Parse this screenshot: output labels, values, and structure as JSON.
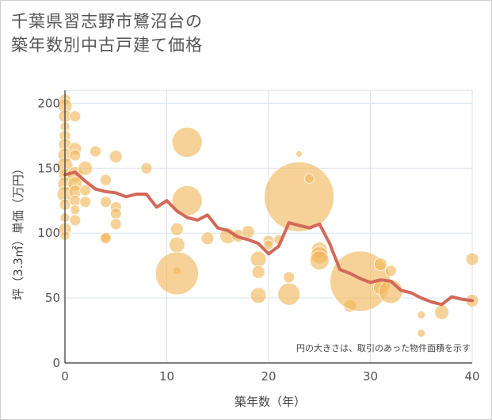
{
  "title": {
    "line1": "千葉県習志野市鷺沼台の",
    "line2": "築年数別中古戸建て価格"
  },
  "note": "円の大きさは、取引のあった物件面積を示す",
  "colors": {
    "bubble": "#f0b659",
    "line": "#d2695a",
    "grid": "#d8e2ea",
    "axis": "#333333"
  },
  "chart_data": {
    "type": "scatter",
    "xlabel": "築年数（年）",
    "ylabel": "坪（3.3㎡）単価（万円）",
    "xlim": [
      0,
      40
    ],
    "ylim": [
      0,
      210
    ],
    "xticks": [
      "0",
      "10",
      "20",
      "30",
      "40"
    ],
    "yticks": [
      "0",
      "50",
      "100",
      "150",
      "200"
    ],
    "grid": true,
    "bubbles": [
      {
        "x": 0,
        "y": 203,
        "r": 7
      },
      {
        "x": 0,
        "y": 198,
        "r": 9
      },
      {
        "x": 0,
        "y": 190,
        "r": 8
      },
      {
        "x": 0,
        "y": 182,
        "r": 6
      },
      {
        "x": 0,
        "y": 175,
        "r": 7
      },
      {
        "x": 0,
        "y": 168,
        "r": 8
      },
      {
        "x": 0,
        "y": 160,
        "r": 9
      },
      {
        "x": 0,
        "y": 152,
        "r": 10
      },
      {
        "x": 0,
        "y": 145,
        "r": 8
      },
      {
        "x": 0,
        "y": 138,
        "r": 9
      },
      {
        "x": 0,
        "y": 130,
        "r": 10
      },
      {
        "x": 0,
        "y": 122,
        "r": 7
      },
      {
        "x": 0,
        "y": 112,
        "r": 6
      },
      {
        "x": 0,
        "y": 103,
        "r": 8
      },
      {
        "x": 0,
        "y": 98,
        "r": 6
      },
      {
        "x": 1,
        "y": 190,
        "r": 7
      },
      {
        "x": 1,
        "y": 165,
        "r": 8
      },
      {
        "x": 1,
        "y": 160,
        "r": 7
      },
      {
        "x": 1,
        "y": 145,
        "r": 10
      },
      {
        "x": 1,
        "y": 138,
        "r": 9
      },
      {
        "x": 1,
        "y": 132,
        "r": 8
      },
      {
        "x": 1,
        "y": 125,
        "r": 7
      },
      {
        "x": 1,
        "y": 118,
        "r": 6
      },
      {
        "x": 1,
        "y": 110,
        "r": 7
      },
      {
        "x": 2,
        "y": 150,
        "r": 9
      },
      {
        "x": 2,
        "y": 133,
        "r": 7
      },
      {
        "x": 2,
        "y": 124,
        "r": 7
      },
      {
        "x": 3,
        "y": 163,
        "r": 7
      },
      {
        "x": 4,
        "y": 141,
        "r": 7
      },
      {
        "x": 4,
        "y": 124,
        "r": 7
      },
      {
        "x": 4,
        "y": 97,
        "r": 6
      },
      {
        "x": 4,
        "y": 96,
        "r": 7
      },
      {
        "x": 5,
        "y": 159,
        "r": 8
      },
      {
        "x": 5,
        "y": 120,
        "r": 7
      },
      {
        "x": 5,
        "y": 115,
        "r": 7
      },
      {
        "x": 5,
        "y": 107,
        "r": 7
      },
      {
        "x": 8,
        "y": 150,
        "r": 7
      },
      {
        "x": 11,
        "y": 103,
        "r": 8
      },
      {
        "x": 11,
        "y": 91,
        "r": 10
      },
      {
        "x": 11,
        "y": 71,
        "r": 5
      },
      {
        "x": 11,
        "y": 69,
        "r": 27
      },
      {
        "x": 12,
        "y": 170,
        "r": 19
      },
      {
        "x": 12,
        "y": 125,
        "r": 19
      },
      {
        "x": 14,
        "y": 96,
        "r": 8
      },
      {
        "x": 16,
        "y": 98,
        "r": 10
      },
      {
        "x": 17,
        "y": 98,
        "r": 8
      },
      {
        "x": 18,
        "y": 101,
        "r": 8
      },
      {
        "x": 19,
        "y": 80,
        "r": 10
      },
      {
        "x": 19,
        "y": 70,
        "r": 8
      },
      {
        "x": 19,
        "y": 52,
        "r": 10
      },
      {
        "x": 20,
        "y": 94,
        "r": 7
      },
      {
        "x": 20,
        "y": 91,
        "r": 6
      },
      {
        "x": 21,
        "y": 95,
        "r": 6
      },
      {
        "x": 22,
        "y": 66,
        "r": 7
      },
      {
        "x": 22,
        "y": 53,
        "r": 14
      },
      {
        "x": 23,
        "y": 128,
        "r": 44
      },
      {
        "x": 23,
        "y": 161,
        "r": 4
      },
      {
        "x": 24,
        "y": 142,
        "r": 6
      },
      {
        "x": 25,
        "y": 87,
        "r": 10
      },
      {
        "x": 25,
        "y": 83,
        "r": 11
      },
      {
        "x": 25,
        "y": 79,
        "r": 12
      },
      {
        "x": 28,
        "y": 44,
        "r": 8
      },
      {
        "x": 29,
        "y": 63,
        "r": 38
      },
      {
        "x": 31,
        "y": 76,
        "r": 8
      },
      {
        "x": 31,
        "y": 58,
        "r": 9
      },
      {
        "x": 32,
        "y": 71,
        "r": 7
      },
      {
        "x": 32,
        "y": 55,
        "r": 15
      },
      {
        "x": 35,
        "y": 37,
        "r": 5
      },
      {
        "x": 35,
        "y": 23,
        "r": 5
      },
      {
        "x": 37,
        "y": 39,
        "r": 9
      },
      {
        "x": 40,
        "y": 80,
        "r": 8
      },
      {
        "x": 40,
        "y": 48,
        "r": 8
      }
    ],
    "series": [
      {
        "type": "line",
        "x": [
          0,
          1,
          2,
          3,
          4,
          5,
          6,
          7,
          8,
          9,
          10,
          11,
          12,
          13,
          14,
          15,
          16,
          17,
          18,
          19,
          20,
          21,
          22,
          23,
          24,
          25,
          26,
          27,
          28,
          29,
          30,
          31,
          32,
          33,
          34,
          35,
          36,
          37,
          38,
          39,
          40
        ],
        "y": [
          145,
          147,
          140,
          134,
          132,
          131,
          128,
          130,
          130,
          120,
          125,
          117,
          112,
          110,
          114,
          104,
          102,
          97,
          95,
          92,
          84,
          90,
          108,
          106,
          104,
          107,
          92,
          72,
          69,
          65,
          62,
          64,
          63,
          56,
          54,
          50,
          47,
          45,
          51,
          49,
          48
        ]
      }
    ]
  }
}
